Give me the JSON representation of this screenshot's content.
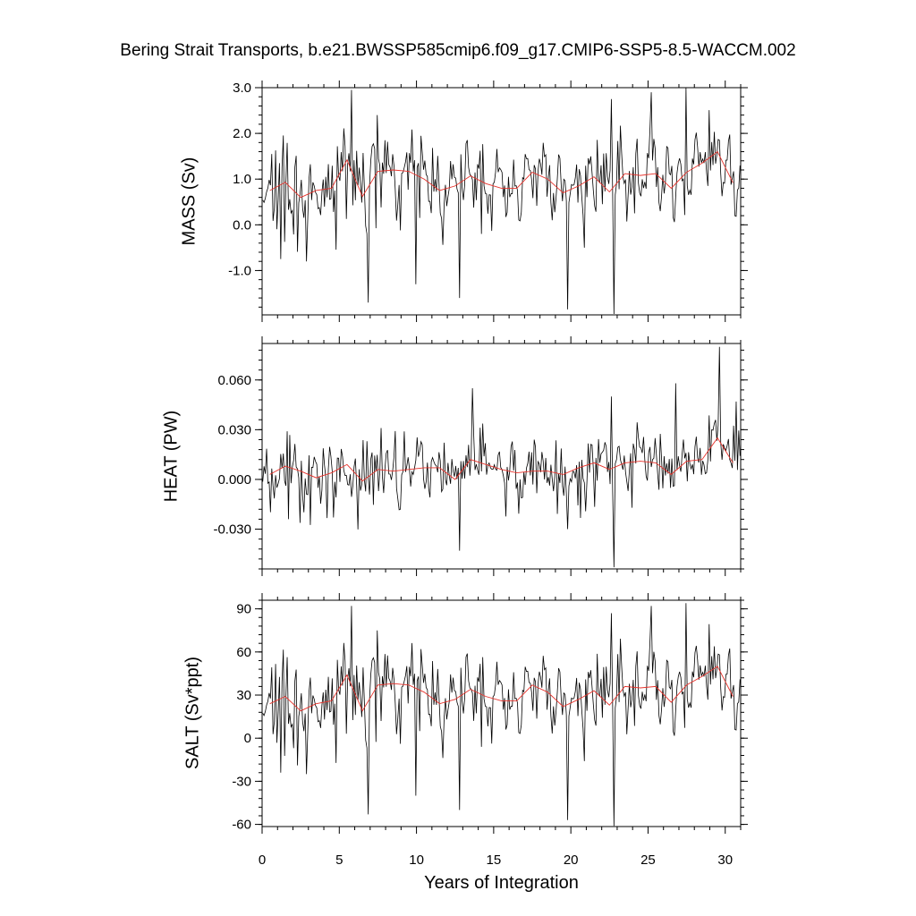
{
  "title": "Bering Strait Transports, b.e21.BWSSP585cmip6.f09_g17.CMIP6-SSP5-8.5-WACCM.002",
  "xlabel": "Years of Integration",
  "colors": {
    "monthly": "#000000",
    "annual": "#e8322b"
  },
  "chart_data": [
    {
      "type": "line",
      "panel": "mass",
      "ylabel": "MASS (Sv)",
      "xlim": [
        0,
        31
      ],
      "ylim": [
        -1.97,
        3.0
      ],
      "yticks": [
        3.0,
        2.0,
        1.0,
        0.0,
        -1.0
      ],
      "ytick_labels": [
        "3.0",
        "2.0",
        "1.0",
        "0.0",
        "-1.0"
      ],
      "xticks": [
        0,
        5,
        10,
        15,
        20,
        25,
        30
      ],
      "annual_x": [
        0.5,
        1.5,
        2.5,
        3.5,
        4.5,
        5.5,
        6.5,
        7.5,
        8.5,
        9.5,
        10.5,
        11.5,
        12.5,
        13.5,
        14.5,
        15.5,
        16.5,
        17.5,
        18.5,
        19.5,
        20.5,
        21.5,
        22.5,
        23.5,
        24.5,
        25.5,
        26.5,
        27.5,
        28.5,
        29.5,
        30.5
      ],
      "annual_mean": [
        0.75,
        0.93,
        0.6,
        0.75,
        0.8,
        1.42,
        0.62,
        1.17,
        1.2,
        1.17,
        1.0,
        0.75,
        0.85,
        1.07,
        0.9,
        0.8,
        0.8,
        1.15,
        1.0,
        0.7,
        0.85,
        1.05,
        0.72,
        1.12,
        1.08,
        1.12,
        0.8,
        1.15,
        1.35,
        1.6,
        0.92
      ],
      "spikes": [
        {
          "x": 5.8,
          "y": 2.95
        },
        {
          "x": 6.9,
          "y": -1.7
        },
        {
          "x": 10.0,
          "y": -1.3
        },
        {
          "x": 12.8,
          "y": -1.6
        },
        {
          "x": 19.8,
          "y": -1.85
        },
        {
          "x": 22.8,
          "y": -1.95
        },
        {
          "x": 22.6,
          "y": 2.75
        },
        {
          "x": 25.2,
          "y": 2.9
        },
        {
          "x": 27.5,
          "y": 3.0
        },
        {
          "x": 7.5,
          "y": 2.4
        },
        {
          "x": 1.2,
          "y": -0.75
        },
        {
          "x": 2.9,
          "y": -0.8
        }
      ],
      "monthly_spread": 0.85,
      "seed": 11
    },
    {
      "type": "line",
      "panel": "heat",
      "ylabel": "HEAT (PW)",
      "xlim": [
        0,
        31
      ],
      "ylim": [
        -0.054,
        0.082
      ],
      "yticks": [
        0.06,
        0.03,
        0.0,
        -0.03
      ],
      "ytick_labels": [
        "0.060",
        "0.030",
        "0.000",
        "-0.030"
      ],
      "xticks": [
        0,
        5,
        10,
        15,
        20,
        25,
        30
      ],
      "annual_x": [
        0.5,
        1.5,
        2.5,
        3.5,
        4.5,
        5.5,
        6.5,
        7.5,
        8.5,
        9.5,
        10.5,
        11.5,
        12.5,
        13.5,
        14.5,
        15.5,
        16.5,
        17.5,
        18.5,
        19.5,
        20.5,
        21.5,
        22.5,
        23.5,
        24.5,
        25.5,
        26.5,
        27.5,
        28.5,
        29.5,
        30.5
      ],
      "annual_mean": [
        0.003,
        0.008,
        0.005,
        0.001,
        0.004,
        0.009,
        -0.001,
        0.006,
        0.005,
        0.006,
        0.007,
        0.007,
        0.0,
        0.012,
        0.009,
        0.006,
        0.004,
        0.005,
        0.005,
        0.003,
        0.007,
        0.01,
        0.006,
        0.01,
        0.011,
        0.01,
        0.003,
        0.011,
        0.012,
        0.025,
        0.01
      ],
      "spikes": [
        {
          "x": 12.8,
          "y": -0.043
        },
        {
          "x": 22.8,
          "y": -0.053
        },
        {
          "x": 13.6,
          "y": 0.055
        },
        {
          "x": 29.6,
          "y": 0.08
        },
        {
          "x": 22.6,
          "y": 0.05
        },
        {
          "x": 19.8,
          "y": -0.03
        },
        {
          "x": 26.8,
          "y": 0.058
        },
        {
          "x": 30.7,
          "y": 0.047
        }
      ],
      "monthly_spread": 0.018,
      "seed": 23
    },
    {
      "type": "line",
      "panel": "salt",
      "ylabel": "SALT (Sv*ppt)",
      "xlim": [
        0,
        31
      ],
      "ylim": [
        -61.5,
        96
      ],
      "yticks": [
        90,
        60,
        30,
        0,
        -30,
        -60
      ],
      "ytick_labels": [
        "90",
        "60",
        "30",
        "0",
        "-30",
        "-60"
      ],
      "xticks": [
        0,
        5,
        10,
        15,
        20,
        25,
        30
      ],
      "xtick_labels": [
        "0",
        "5",
        "10",
        "15",
        "20",
        "25",
        "30"
      ],
      "annual_x": [
        0.5,
        1.5,
        2.5,
        3.5,
        4.5,
        5.5,
        6.5,
        7.5,
        8.5,
        9.5,
        10.5,
        11.5,
        12.5,
        13.5,
        14.5,
        15.5,
        16.5,
        17.5,
        18.5,
        19.5,
        20.5,
        21.5,
        22.5,
        23.5,
        24.5,
        25.5,
        26.5,
        27.5,
        28.5,
        29.5,
        30.5
      ],
      "annual_mean": [
        24,
        29,
        19,
        24,
        26,
        44,
        19,
        37,
        38,
        37,
        32,
        24,
        27,
        34,
        29,
        26,
        26,
        37,
        32,
        22,
        27,
        33,
        23,
        36,
        35,
        36,
        25,
        37,
        43,
        50,
        29
      ],
      "spikes": [
        {
          "x": 5.8,
          "y": 92
        },
        {
          "x": 6.9,
          "y": -53
        },
        {
          "x": 10.0,
          "y": -40
        },
        {
          "x": 12.8,
          "y": -50
        },
        {
          "x": 19.8,
          "y": -57
        },
        {
          "x": 22.8,
          "y": -61
        },
        {
          "x": 22.6,
          "y": 87
        },
        {
          "x": 25.2,
          "y": 92
        },
        {
          "x": 27.5,
          "y": 94
        },
        {
          "x": 7.5,
          "y": 75
        },
        {
          "x": 1.2,
          "y": -24
        },
        {
          "x": 2.9,
          "y": -25
        }
      ],
      "monthly_spread": 27,
      "seed": 11
    }
  ]
}
